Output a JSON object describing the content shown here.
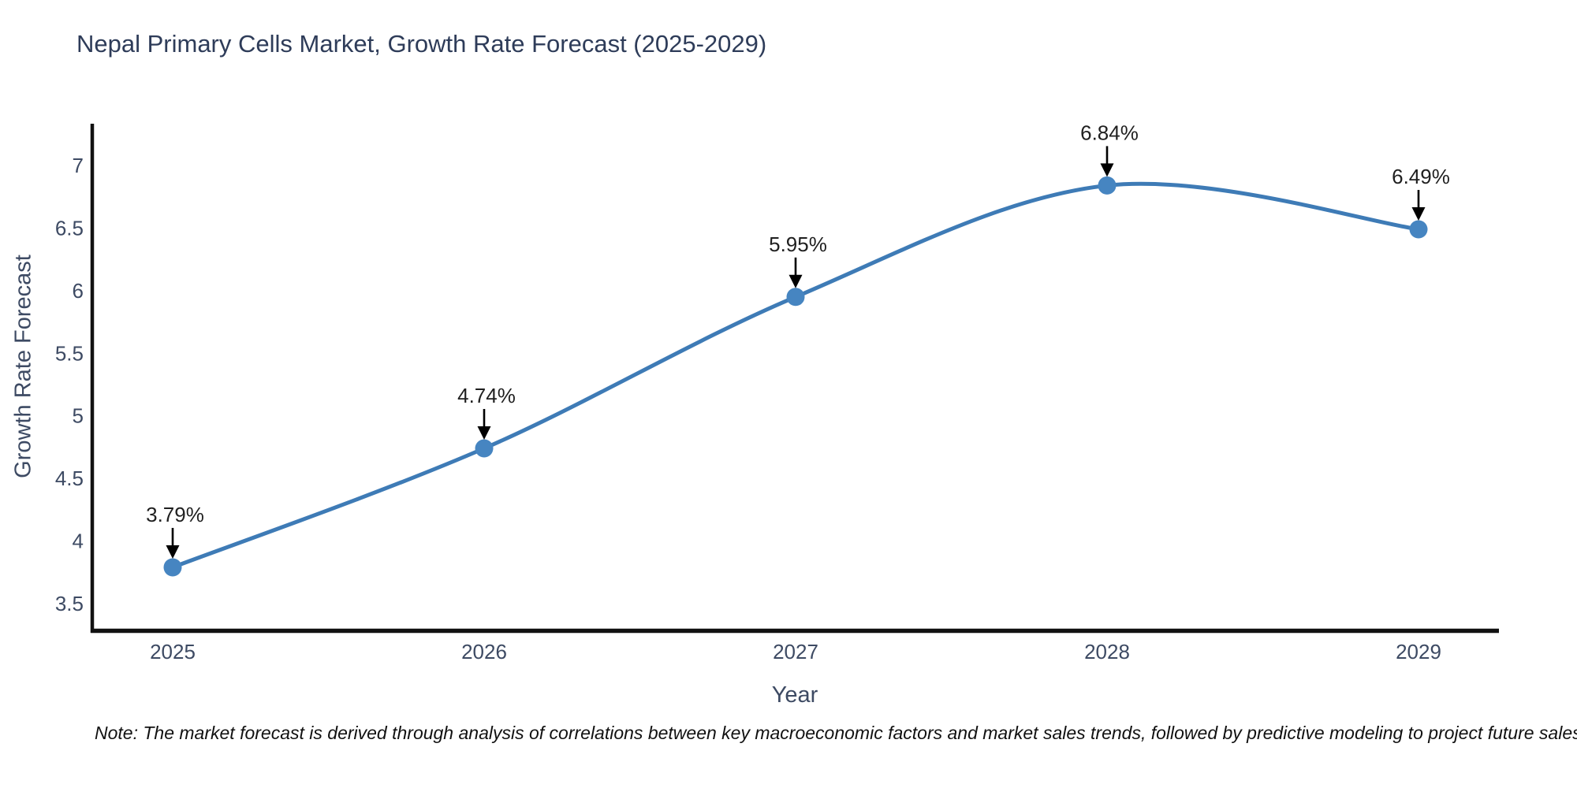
{
  "title": "Nepal Primary Cells Market, Growth Rate Forecast (2025-2029)",
  "note": "Note: The market forecast is derived through analysis of correlations between key macroeconomic factors and market sales trends, followed by predictive modeling to project future sales",
  "chart_data": {
    "type": "line",
    "title": "Nepal Primary Cells Market, Growth Rate Forecast (2025-2029)",
    "xlabel": "Year",
    "ylabel": "Growth Rate Forecast",
    "categories": [
      "2025",
      "2026",
      "2027",
      "2028",
      "2029"
    ],
    "values": [
      3.79,
      4.74,
      5.95,
      6.84,
      6.49
    ],
    "point_labels": [
      "3.79%",
      "4.74%",
      "5.95%",
      "6.84%",
      "6.49%"
    ],
    "yticks": [
      7,
      6.5,
      6,
      5.5,
      5,
      4.5,
      4,
      3.5
    ],
    "ylim": [
      3.29,
      7.31
    ],
    "grid": false,
    "legend": "none",
    "line_style": "smooth-spline",
    "marker": "circle",
    "annotation_arrow": "down",
    "colors": {
      "line": "#3e7bb6",
      "marker": "#4685c1",
      "annotation_text": "#1f1f1f",
      "arrow": "#000000",
      "axis_line": "#111111",
      "tick_label": "#3d4a63",
      "title": "#2e3c59"
    }
  }
}
